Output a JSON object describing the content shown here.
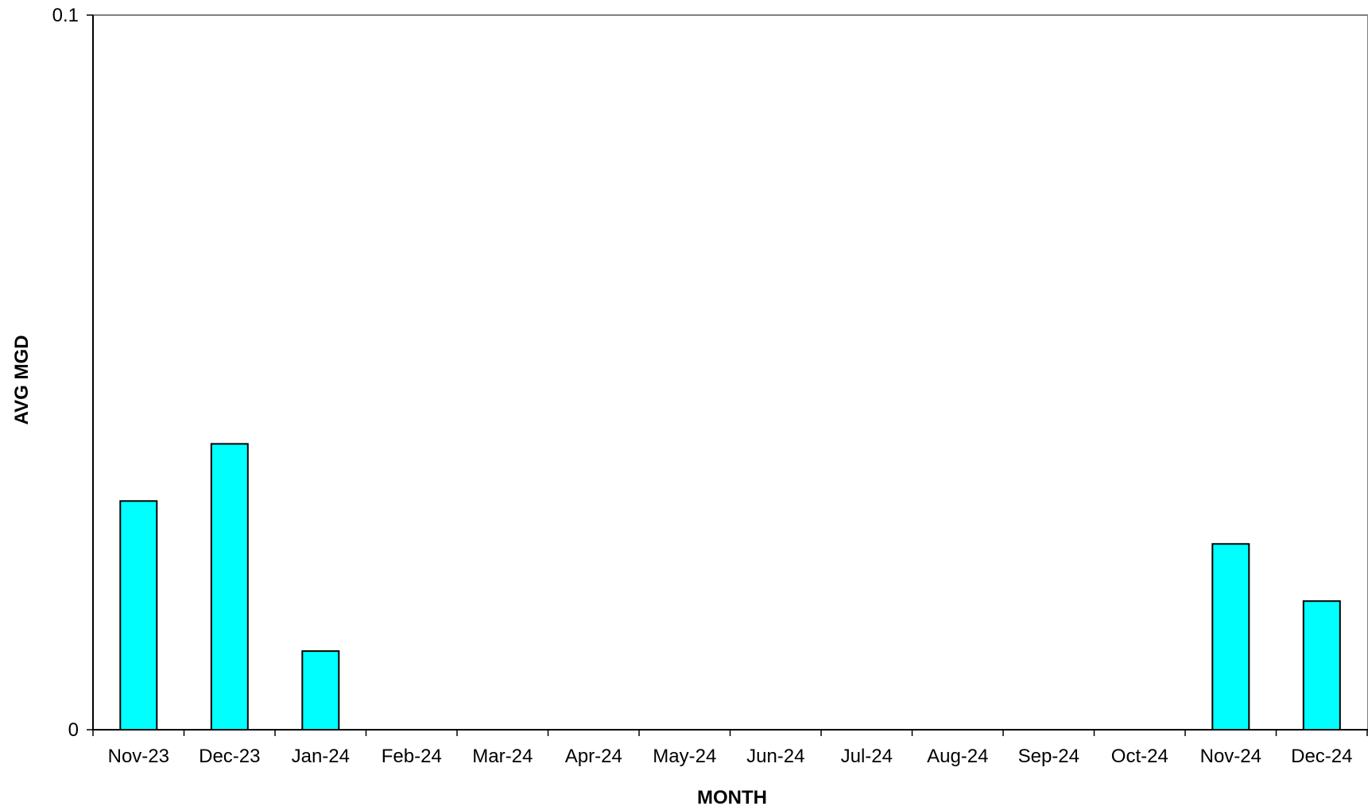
{
  "chart_data": {
    "type": "bar",
    "title": "",
    "xlabel": "MONTH",
    "ylabel": "AVG MGD",
    "categories": [
      "Nov-23",
      "Dec-23",
      "Jan-24",
      "Feb-24",
      "Mar-24",
      "Apr-24",
      "May-24",
      "Jun-24",
      "Jul-24",
      "Aug-24",
      "Sep-24",
      "Oct-24",
      "Nov-24",
      "Dec-24"
    ],
    "values": [
      0.032,
      0.04,
      0.011,
      0,
      0,
      0,
      0,
      0,
      0,
      0,
      0,
      0,
      0.026,
      0.018
    ],
    "ylim": [
      0,
      0.1
    ],
    "yticks": [
      "0",
      "0.1"
    ],
    "grid": false,
    "legend": "none",
    "colors": {
      "bar_fill": "#00FFFF",
      "bar_stroke": "#000000",
      "axis": "#000000",
      "plot_border": "#808080"
    }
  }
}
